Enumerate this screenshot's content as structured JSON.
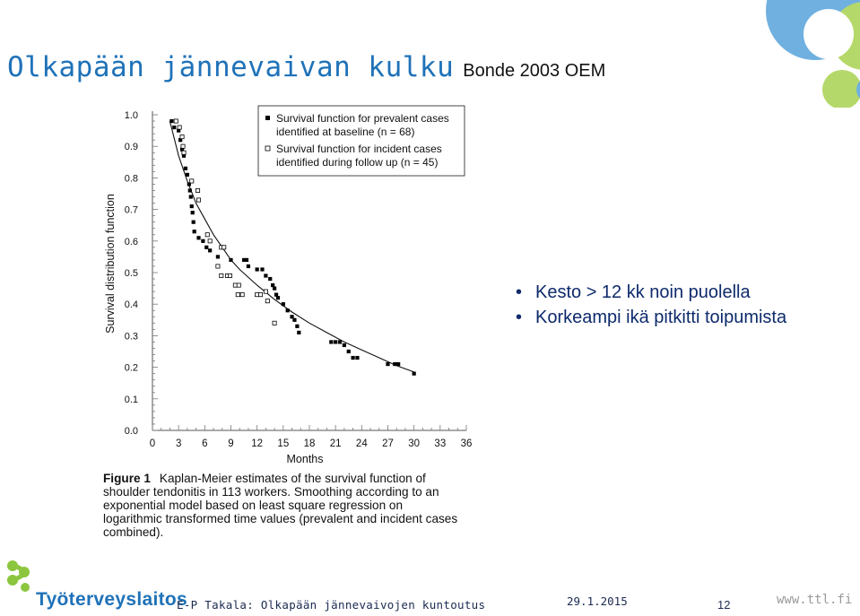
{
  "slide": {
    "title_main": "Olkapään jännevaivan kulku",
    "title_sub": "Bonde 2003 OEM",
    "bullets": [
      "Kesto > 12 kk noin puolella",
      "Korkeampi ikä pitkitti toipumista"
    ],
    "bullet_symbol": "•",
    "caption_label": "Figure 1",
    "caption_text": "Kaplan-Meier estimates of the survival function of shoulder tendonitis in 113 workers. Smoothing according to an exponential model based on least square regression on logarithmic transformed time values (prevalent and incident cases combined).",
    "footer": {
      "brand": "Työterveyslaitos",
      "text": "E-P Takala: Olkapään jännevaivojen kuntoutus",
      "date": "29.1.2015",
      "page": "12",
      "web": "www.ttl.fi"
    },
    "colors": {
      "title": "#1f72b8",
      "bullets": "#0d2a6b",
      "logo_green": "#8cc63f",
      "logo_blue": "#1f72b8",
      "deco_green": "#b5d86a",
      "deco_blue": "#6fb0e0"
    }
  },
  "chart_data": {
    "type": "scatter",
    "xlabel": "Months",
    "ylabel": "Survival distribution function",
    "xlim": [
      0,
      36
    ],
    "ylim": [
      0,
      1.0
    ],
    "xticks": [
      "0",
      "3",
      "6",
      "9",
      "12",
      "15",
      "18",
      "21",
      "24",
      "27",
      "30",
      "33",
      "36"
    ],
    "yticks": [
      "0.0",
      "0.1",
      "0.2",
      "0.3",
      "0.4",
      "0.5",
      "0.6",
      "0.7",
      "0.8",
      "0.9",
      "1.0"
    ],
    "legend_position": "top-right",
    "series": [
      {
        "name": "Survival function for prevalent cases identified at baseline (n = 68)",
        "marker": "filled-square",
        "points": [
          [
            2.2,
            0.98
          ],
          [
            2.5,
            0.96
          ],
          [
            3.0,
            0.95
          ],
          [
            3.2,
            0.92
          ],
          [
            3.4,
            0.89
          ],
          [
            3.6,
            0.87
          ],
          [
            3.8,
            0.83
          ],
          [
            4.0,
            0.81
          ],
          [
            4.2,
            0.78
          ],
          [
            4.3,
            0.76
          ],
          [
            4.4,
            0.74
          ],
          [
            4.5,
            0.71
          ],
          [
            4.6,
            0.69
          ],
          [
            4.7,
            0.66
          ],
          [
            4.8,
            0.63
          ],
          [
            5.3,
            0.61
          ],
          [
            5.8,
            0.6
          ],
          [
            6.2,
            0.58
          ],
          [
            6.6,
            0.57
          ],
          [
            7.5,
            0.55
          ],
          [
            9.0,
            0.54
          ],
          [
            10.5,
            0.54
          ],
          [
            10.8,
            0.54
          ],
          [
            11.0,
            0.52
          ],
          [
            12.0,
            0.51
          ],
          [
            12.6,
            0.51
          ],
          [
            13.0,
            0.49
          ],
          [
            13.5,
            0.48
          ],
          [
            13.8,
            0.46
          ],
          [
            14.0,
            0.45
          ],
          [
            14.2,
            0.43
          ],
          [
            14.4,
            0.42
          ],
          [
            15.0,
            0.4
          ],
          [
            15.5,
            0.38
          ],
          [
            16.0,
            0.36
          ],
          [
            16.3,
            0.35
          ],
          [
            16.6,
            0.33
          ],
          [
            16.8,
            0.31
          ],
          [
            20.5,
            0.28
          ],
          [
            21.0,
            0.28
          ],
          [
            21.5,
            0.28
          ],
          [
            22.0,
            0.27
          ],
          [
            22.5,
            0.25
          ],
          [
            23.0,
            0.23
          ],
          [
            23.5,
            0.23
          ],
          [
            27.0,
            0.21
          ],
          [
            27.8,
            0.21
          ],
          [
            28.2,
            0.21
          ],
          [
            30.0,
            0.18
          ]
        ]
      },
      {
        "name": "Survival function for incident cases identified during follow up (n = 45)",
        "marker": "open-square",
        "points": [
          [
            2.7,
            0.98
          ],
          [
            3.1,
            0.96
          ],
          [
            3.4,
            0.93
          ],
          [
            3.5,
            0.9
          ],
          [
            3.6,
            0.88
          ],
          [
            4.5,
            0.79
          ],
          [
            5.2,
            0.76
          ],
          [
            5.3,
            0.73
          ],
          [
            6.3,
            0.62
          ],
          [
            6.6,
            0.6
          ],
          [
            7.9,
            0.58
          ],
          [
            8.2,
            0.58
          ],
          [
            7.5,
            0.52
          ],
          [
            7.9,
            0.49
          ],
          [
            8.6,
            0.49
          ],
          [
            8.9,
            0.49
          ],
          [
            9.5,
            0.46
          ],
          [
            9.9,
            0.46
          ],
          [
            9.8,
            0.43
          ],
          [
            10.3,
            0.43
          ],
          [
            12.0,
            0.43
          ],
          [
            12.4,
            0.43
          ],
          [
            13.0,
            0.44
          ],
          [
            13.2,
            0.41
          ],
          [
            14.0,
            0.34
          ]
        ]
      }
    ],
    "fit_line": {
      "name": "exponential model fit",
      "points": [
        [
          2.0,
          0.98
        ],
        [
          3.0,
          0.87
        ],
        [
          4.0,
          0.79
        ],
        [
          5.0,
          0.72
        ],
        [
          6.0,
          0.67
        ],
        [
          7.0,
          0.62
        ],
        [
          8.0,
          0.58
        ],
        [
          9.0,
          0.54
        ],
        [
          10.0,
          0.51
        ],
        [
          12.0,
          0.46
        ],
        [
          14.0,
          0.415
        ],
        [
          16.0,
          0.375
        ],
        [
          18.0,
          0.34
        ],
        [
          20.0,
          0.31
        ],
        [
          22.0,
          0.28
        ],
        [
          24.0,
          0.255
        ],
        [
          26.0,
          0.23
        ],
        [
          28.0,
          0.205
        ],
        [
          30.0,
          0.185
        ]
      ]
    }
  }
}
